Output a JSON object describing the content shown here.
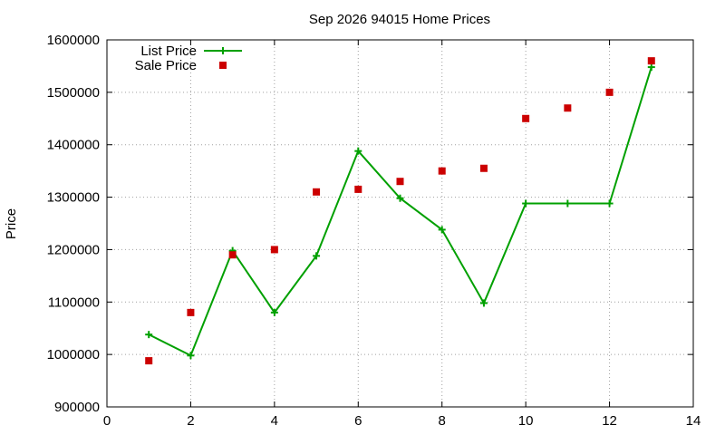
{
  "chart_data": {
    "type": "line",
    "title": "Sep 2026 94015 Home Prices",
    "xlabel": "",
    "ylabel": "Price",
    "xlim": [
      0,
      14
    ],
    "ylim": [
      900000,
      1600000
    ],
    "xticks": [
      "0",
      "2",
      "4",
      "6",
      "8",
      "10",
      "12",
      "14"
    ],
    "yticks": [
      "900000",
      "1000000",
      "1100000",
      "1200000",
      "1300000",
      "1400000",
      "1500000",
      "1600000"
    ],
    "grid": true,
    "legend": "top-left",
    "series": [
      {
        "name": "List Price",
        "type": "line",
        "color": "#00a000",
        "marker": "plus",
        "x": [
          1,
          2,
          3,
          4,
          5,
          6,
          7,
          8,
          9,
          10,
          11,
          12,
          13
        ],
        "values": [
          1038000,
          998000,
          1198000,
          1080000,
          1188000,
          1388000,
          1298000,
          1238000,
          1098000,
          1288000,
          1288000,
          1288000,
          1548000
        ]
      },
      {
        "name": "Sale Price",
        "type": "scatter",
        "color": "#cc0000",
        "marker": "square",
        "x": [
          1,
          2,
          3,
          4,
          5,
          6,
          7,
          8,
          9,
          10,
          11,
          12,
          13
        ],
        "values": [
          988000,
          1080000,
          1190000,
          1200000,
          1310000,
          1315000,
          1330000,
          1350000,
          1355000,
          1450000,
          1470000,
          1500000,
          1560000
        ]
      }
    ]
  }
}
